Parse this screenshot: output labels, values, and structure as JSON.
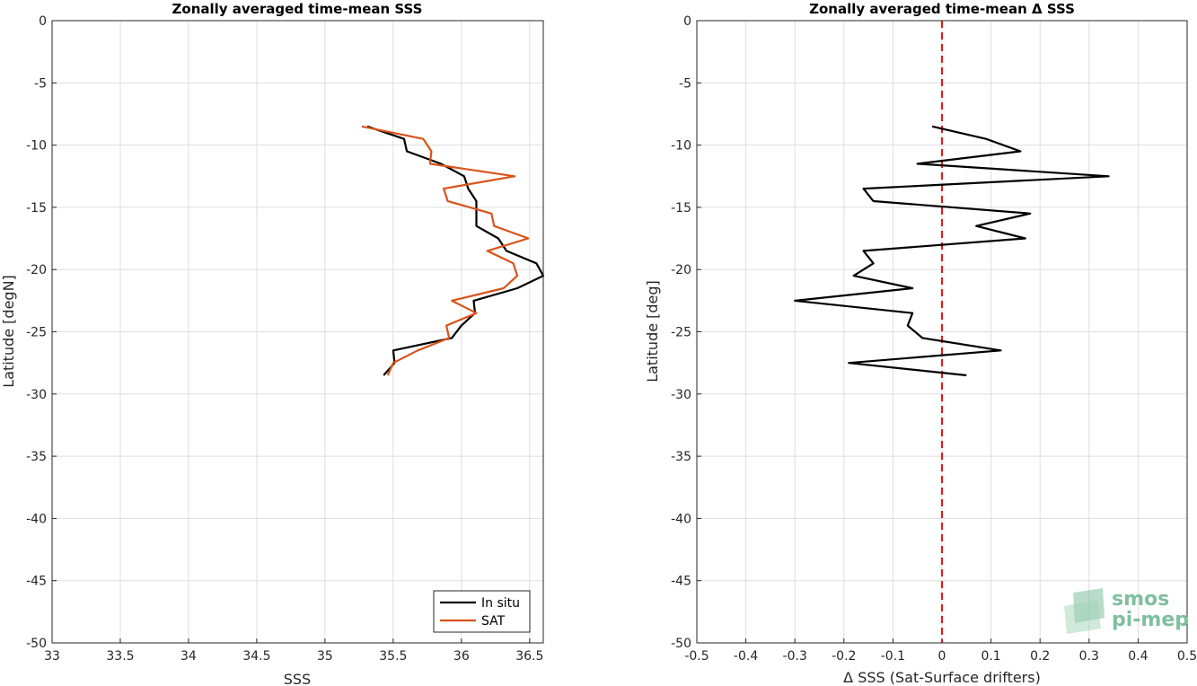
{
  "chart_data": [
    {
      "type": "line",
      "title": "Zonally averaged time-mean SSS",
      "xlabel": "SSS",
      "ylabel": "Latitude [degN]",
      "xlim": [
        33,
        36.6
      ],
      "ylim": [
        -50,
        0
      ],
      "xticks": [
        33,
        33.5,
        34,
        34.5,
        35,
        35.5,
        36,
        36.5
      ],
      "xtick_labels": [
        "33",
        "33.5",
        "34",
        "34.5",
        "35",
        "35.5",
        "36",
        "36.5"
      ],
      "yticks": [
        0,
        -5,
        -10,
        -15,
        -20,
        -25,
        -30,
        -35,
        -40,
        -45,
        -50
      ],
      "ytick_labels": [
        "0",
        "-5",
        "-10",
        "-15",
        "-20",
        "-25",
        "-30",
        "-35",
        "-40",
        "-45",
        "-50"
      ],
      "grid": true,
      "legend": "bottom-right",
      "series": [
        {
          "name": "In situ",
          "color": "#000000",
          "points": [
            [
              35.31,
              -8.5
            ],
            [
              35.58,
              -9.5
            ],
            [
              35.6,
              -10.5
            ],
            [
              35.85,
              -11.5
            ],
            [
              36.02,
              -12.5
            ],
            [
              36.05,
              -13.5
            ],
            [
              36.11,
              -14.5
            ],
            [
              36.11,
              -15.5
            ],
            [
              36.11,
              -16.5
            ],
            [
              36.27,
              -17.5
            ],
            [
              36.33,
              -18.5
            ],
            [
              36.55,
              -19.5
            ],
            [
              36.6,
              -20.5
            ],
            [
              36.41,
              -21.5
            ],
            [
              36.09,
              -22.5
            ],
            [
              36.1,
              -23.5
            ],
            [
              36.0,
              -24.5
            ],
            [
              35.93,
              -25.5
            ],
            [
              35.5,
              -26.5
            ],
            [
              35.51,
              -27.5
            ],
            [
              35.43,
              -28.5
            ]
          ]
        },
        {
          "name": "SAT",
          "color": "#d95319",
          "points": [
            [
              35.27,
              -8.5
            ],
            [
              35.72,
              -9.5
            ],
            [
              35.78,
              -10.5
            ],
            [
              35.77,
              -11.5
            ],
            [
              36.39,
              -12.5
            ],
            [
              35.87,
              -13.5
            ],
            [
              35.9,
              -14.5
            ],
            [
              36.22,
              -15.5
            ],
            [
              36.24,
              -16.5
            ],
            [
              36.49,
              -17.5
            ],
            [
              36.19,
              -18.5
            ],
            [
              36.38,
              -19.5
            ],
            [
              36.41,
              -20.5
            ],
            [
              36.31,
              -21.5
            ],
            [
              35.93,
              -22.5
            ],
            [
              36.11,
              -23.5
            ],
            [
              35.89,
              -24.5
            ],
            [
              35.91,
              -25.5
            ],
            [
              35.68,
              -26.5
            ],
            [
              35.5,
              -27.5
            ],
            [
              35.46,
              -28.5
            ]
          ]
        }
      ]
    },
    {
      "type": "line",
      "title": "Zonally averaged time-mean Δ SSS",
      "xlabel": "Δ SSS (Sat-Surface drifters)",
      "ylabel": "Latitude [deg]",
      "xlim": [
        -0.5,
        0.5
      ],
      "ylim": [
        -50,
        0
      ],
      "xticks": [
        -0.5,
        -0.4,
        -0.3,
        -0.2,
        -0.1,
        0,
        0.1,
        0.2,
        0.3,
        0.4,
        0.5
      ],
      "xtick_labels": [
        "-0.5",
        "-0.4",
        "-0.3",
        "-0.2",
        "-0.1",
        "0",
        "0.1",
        "0.2",
        "0.3",
        "0.4",
        "0.5"
      ],
      "yticks": [
        0,
        -5,
        -10,
        -15,
        -20,
        -25,
        -30,
        -35,
        -40,
        -45,
        -50
      ],
      "ytick_labels": [
        "0",
        "-5",
        "-10",
        "-15",
        "-20",
        "-25",
        "-30",
        "-35",
        "-40",
        "-45",
        "-50"
      ],
      "grid": true,
      "reference_line": {
        "x": 0,
        "style": "dashed",
        "color": "#e41a1c"
      },
      "series": [
        {
          "color": "#000000",
          "points": [
            [
              -0.02,
              -8.5
            ],
            [
              0.09,
              -9.5
            ],
            [
              0.16,
              -10.5
            ],
            [
              -0.05,
              -11.5
            ],
            [
              0.34,
              -12.5
            ],
            [
              -0.16,
              -13.5
            ],
            [
              -0.14,
              -14.5
            ],
            [
              0.18,
              -15.5
            ],
            [
              0.07,
              -16.5
            ],
            [
              0.17,
              -17.5
            ],
            [
              -0.16,
              -18.5
            ],
            [
              -0.14,
              -19.5
            ],
            [
              -0.18,
              -20.5
            ],
            [
              -0.06,
              -21.5
            ],
            [
              -0.3,
              -22.5
            ],
            [
              -0.06,
              -23.5
            ],
            [
              -0.07,
              -24.5
            ],
            [
              -0.04,
              -25.5
            ],
            [
              0.12,
              -26.5
            ],
            [
              -0.19,
              -27.5
            ],
            [
              0.05,
              -28.5
            ]
          ]
        }
      ]
    }
  ],
  "watermark": {
    "line1": "smos",
    "line2": "pi-mep"
  }
}
